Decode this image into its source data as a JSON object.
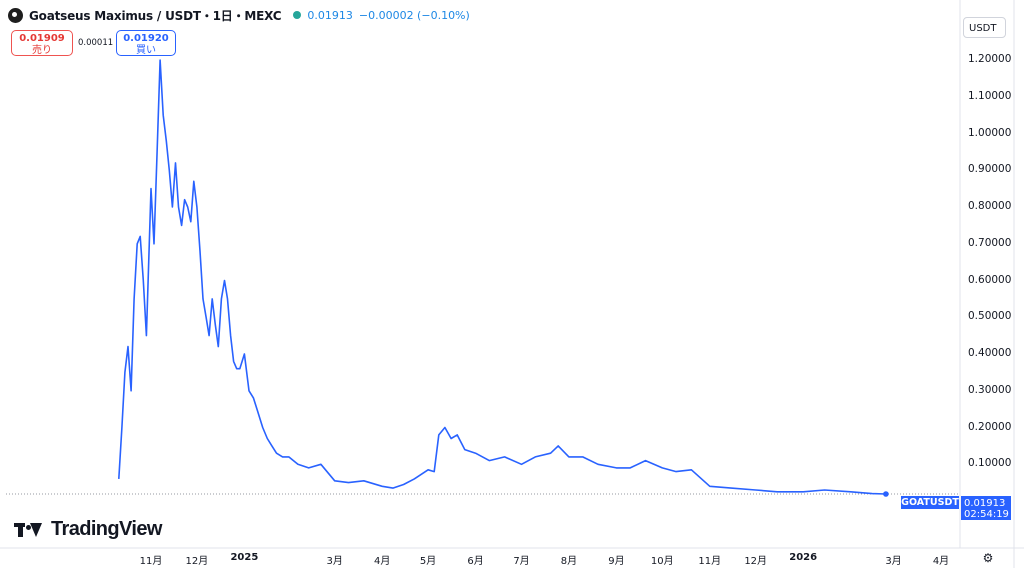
{
  "header": {
    "symbol_title": "Goatseus Maximus / USDT・1日・MEXC",
    "last_price": "0.01913",
    "change": "−0.00002 (−0.10%)",
    "logo_icon": "goat-coin-icon",
    "status_color": "#26a69a"
  },
  "trade": {
    "sell_price": "0.01909",
    "sell_label": "売り",
    "spread": "0.00011",
    "buy_price": "0.01920",
    "buy_label": "買い"
  },
  "currency_selector": "USDT",
  "price_tag": {
    "symbol": "GOATUSDT",
    "price": "0.01913",
    "countdown": "02:54:19"
  },
  "branding": {
    "name": "TradingView"
  },
  "settings_icon": "gear-icon",
  "colors": {
    "line": "#2962ff",
    "sell": "#ef5350",
    "buy": "#2962ff"
  },
  "chart_data": {
    "type": "line",
    "title": "",
    "xlabel": "",
    "ylabel": "",
    "ylim": [
      0,
      1.28
    ],
    "grid": false,
    "y_axis_position": "right",
    "y_ticks": [
      "1.20000",
      "1.10000",
      "1.00000",
      "0.90000",
      "0.80000",
      "0.70000",
      "0.60000",
      "0.50000",
      "0.40000",
      "0.30000",
      "0.20000",
      "0.10000"
    ],
    "x_ticks": [
      {
        "label": "11月",
        "bold": false
      },
      {
        "label": "12月",
        "bold": false
      },
      {
        "label": "2025",
        "bold": true
      },
      {
        "label": "3月",
        "bold": false
      },
      {
        "label": "4月",
        "bold": false
      },
      {
        "label": "5月",
        "bold": false
      },
      {
        "label": "6月",
        "bold": false
      },
      {
        "label": "7月",
        "bold": false
      },
      {
        "label": "8月",
        "bold": false
      },
      {
        "label": "9月",
        "bold": false
      },
      {
        "label": "10月",
        "bold": false
      },
      {
        "label": "11月",
        "bold": false
      },
      {
        "label": "12月",
        "bold": false
      },
      {
        "label": "2026",
        "bold": true
      },
      {
        "label": "3月",
        "bold": false
      },
      {
        "label": "4月",
        "bold": false
      }
    ],
    "series": [
      {
        "x": [
          "2024-10-11",
          "2024-10-13",
          "2024-10-15",
          "2024-10-17",
          "2024-10-19",
          "2024-10-21",
          "2024-10-23",
          "2024-10-25",
          "2024-10-27",
          "2024-10-29",
          "2024-11-01",
          "2024-11-03",
          "2024-11-05",
          "2024-11-07",
          "2024-11-09",
          "2024-11-11",
          "2024-11-13",
          "2024-11-15",
          "2024-11-17",
          "2024-11-19",
          "2024-11-21",
          "2024-11-23",
          "2024-11-25",
          "2024-11-27",
          "2024-11-29",
          "2024-12-01",
          "2024-12-03",
          "2024-12-05",
          "2024-12-07",
          "2024-12-09",
          "2024-12-11",
          "2024-12-13",
          "2024-12-15",
          "2024-12-17",
          "2024-12-19",
          "2024-12-21",
          "2024-12-23",
          "2024-12-25",
          "2024-12-27",
          "2024-12-29",
          "2025-01-01",
          "2025-01-04",
          "2025-01-07",
          "2025-01-10",
          "2025-01-13",
          "2025-01-16",
          "2025-01-19",
          "2025-01-22",
          "2025-01-26",
          "2025-01-30",
          "2025-02-05",
          "2025-02-12",
          "2025-02-20",
          "2025-03-01",
          "2025-03-10",
          "2025-03-20",
          "2025-04-01",
          "2025-04-08",
          "2025-04-15",
          "2025-04-22",
          "2025-05-01",
          "2025-05-05",
          "2025-05-08",
          "2025-05-12",
          "2025-05-16",
          "2025-05-20",
          "2025-05-25",
          "2025-06-01",
          "2025-06-10",
          "2025-06-20",
          "2025-07-01",
          "2025-07-10",
          "2025-07-20",
          "2025-07-25",
          "2025-08-01",
          "2025-08-10",
          "2025-08-20",
          "2025-09-01",
          "2025-09-10",
          "2025-09-20",
          "2025-10-01",
          "2025-10-10",
          "2025-10-20",
          "2025-11-01",
          "2025-11-15",
          "2025-12-01",
          "2025-12-15",
          "2026-01-01",
          "2026-01-15",
          "2026-02-01",
          "2026-02-15",
          "2026-02-24"
        ],
        "values": [
          0.06,
          0.2,
          0.35,
          0.42,
          0.3,
          0.55,
          0.7,
          0.72,
          0.6,
          0.45,
          0.85,
          0.7,
          0.95,
          1.2,
          1.05,
          0.98,
          0.9,
          0.8,
          0.92,
          0.8,
          0.75,
          0.82,
          0.8,
          0.76,
          0.87,
          0.8,
          0.68,
          0.55,
          0.5,
          0.45,
          0.55,
          0.48,
          0.42,
          0.55,
          0.6,
          0.55,
          0.45,
          0.38,
          0.36,
          0.36,
          0.4,
          0.3,
          0.28,
          0.24,
          0.2,
          0.17,
          0.15,
          0.13,
          0.12,
          0.12,
          0.1,
          0.09,
          0.1,
          0.055,
          0.05,
          0.055,
          0.04,
          0.035,
          0.045,
          0.06,
          0.085,
          0.08,
          0.18,
          0.2,
          0.17,
          0.18,
          0.14,
          0.13,
          0.11,
          0.12,
          0.1,
          0.12,
          0.13,
          0.15,
          0.12,
          0.12,
          0.1,
          0.09,
          0.09,
          0.11,
          0.09,
          0.08,
          0.085,
          0.04,
          0.035,
          0.03,
          0.025,
          0.025,
          0.03,
          0.025,
          0.02,
          0.01913
        ]
      }
    ]
  }
}
